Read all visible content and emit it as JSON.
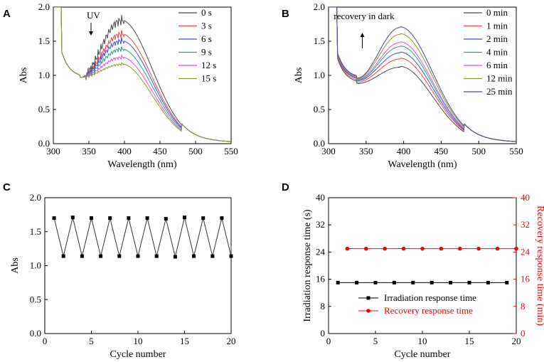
{
  "chart_data": [
    {
      "panel": "A",
      "type": "line",
      "xlabel": "Wavelength (nm)",
      "ylabel": "Abs",
      "xlim": [
        300,
        550
      ],
      "ylim": [
        0.0,
        2.0
      ],
      "xticks": [
        "300",
        "350",
        "400",
        "450",
        "500",
        "550"
      ],
      "yticks": [
        "0.0",
        "0.5",
        "1.0",
        "1.5",
        "2.0"
      ],
      "annotation": "UV",
      "legend_position": "top-right",
      "series": [
        {
          "name": "0 s",
          "color": "#4a4a4a",
          "peak": 1.8,
          "min": 0.97
        },
        {
          "name": "3 s",
          "color": "#e8474b",
          "peak": 1.6,
          "min": 0.97
        },
        {
          "name": "6 s",
          "color": "#3a4fd6",
          "peak": 1.5,
          "min": 0.97
        },
        {
          "name": "9 s",
          "color": "#2aa198",
          "peak": 1.38,
          "min": 0.97
        },
        {
          "name": "12 s",
          "color": "#e052e0",
          "peak": 1.26,
          "min": 0.97
        },
        {
          "name": "15 s",
          "color": "#8a9a2e",
          "peak": 1.16,
          "min": 0.97
        }
      ]
    },
    {
      "panel": "B",
      "type": "line",
      "xlabel": "Wavelength (nm)",
      "ylabel": "Abs",
      "xlim": [
        300,
        550
      ],
      "ylim": [
        0.0,
        2.0
      ],
      "xticks": [
        "300",
        "350",
        "400",
        "450",
        "500",
        "550"
      ],
      "yticks": [
        "0.0",
        "0.5",
        "1.0",
        "1.5",
        "2.0"
      ],
      "annotation": "recovery in dark",
      "legend_position": "top-right",
      "series": [
        {
          "name": "0 min",
          "color": "#4a4a4a",
          "peak": 1.12,
          "min": 0.88
        },
        {
          "name": "1 min",
          "color": "#e8474b",
          "peak": 1.24,
          "min": 0.9
        },
        {
          "name": "2 min",
          "color": "#3a4fd6",
          "peak": 1.33,
          "min": 0.92
        },
        {
          "name": "4 min",
          "color": "#2aa198",
          "peak": 1.42,
          "min": 0.93
        },
        {
          "name": "6 min",
          "color": "#e052e0",
          "peak": 1.48,
          "min": 0.94
        },
        {
          "name": "12 min",
          "color": "#8a9a2e",
          "peak": 1.6,
          "min": 0.95
        },
        {
          "name": "25 min",
          "color": "#4a4a8a",
          "peak": 1.7,
          "min": 0.96
        }
      ]
    },
    {
      "panel": "C",
      "type": "line",
      "xlabel": "Cycle number",
      "ylabel": "Abs",
      "xlim": [
        0,
        20
      ],
      "ylim": [
        0.0,
        2.0
      ],
      "xticks": [
        "0",
        "5",
        "10",
        "15",
        "20"
      ],
      "yticks": [
        "0.0",
        "0.5",
        "1.0",
        "1.5",
        "2.0"
      ],
      "x": [
        1,
        2,
        3,
        4,
        5,
        6,
        7,
        8,
        9,
        10,
        11,
        12,
        13,
        14,
        15,
        16,
        17,
        18,
        19,
        20
      ],
      "series": [
        {
          "name": "Abs",
          "color": "#000000",
          "values": [
            1.7,
            1.14,
            1.71,
            1.14,
            1.7,
            1.14,
            1.7,
            1.14,
            1.7,
            1.14,
            1.7,
            1.14,
            1.69,
            1.13,
            1.71,
            1.14,
            1.7,
            1.14,
            1.7,
            1.14
          ]
        }
      ]
    },
    {
      "panel": "D",
      "type": "line",
      "xlabel": "Cycle number",
      "ylabel": "Irradiation response time (s)",
      "ylabel_right": "Recovery response time (min)",
      "xlim": [
        0,
        20
      ],
      "ylim": [
        0,
        40
      ],
      "ylim_right": [
        0,
        40
      ],
      "xticks": [
        "0",
        "5",
        "10",
        "15",
        "20"
      ],
      "yticks": [
        "0",
        "8",
        "16",
        "24",
        "32",
        "40"
      ],
      "legend_position": "bottom-center",
      "series": [
        {
          "name": "Irradiation response time",
          "color": "#000000",
          "x": [
            1,
            3,
            5,
            7,
            9,
            11,
            13,
            15,
            17,
            19
          ],
          "values": [
            15,
            15,
            15,
            15,
            15,
            15,
            15,
            15,
            15,
            15
          ]
        },
        {
          "name": "Recovery response time",
          "color": "#ff0000",
          "x": [
            2,
            4,
            6,
            8,
            10,
            12,
            14,
            16,
            18,
            20
          ],
          "values": [
            25,
            25,
            25,
            25,
            25,
            25,
            25,
            25,
            25,
            25
          ]
        }
      ]
    }
  ]
}
